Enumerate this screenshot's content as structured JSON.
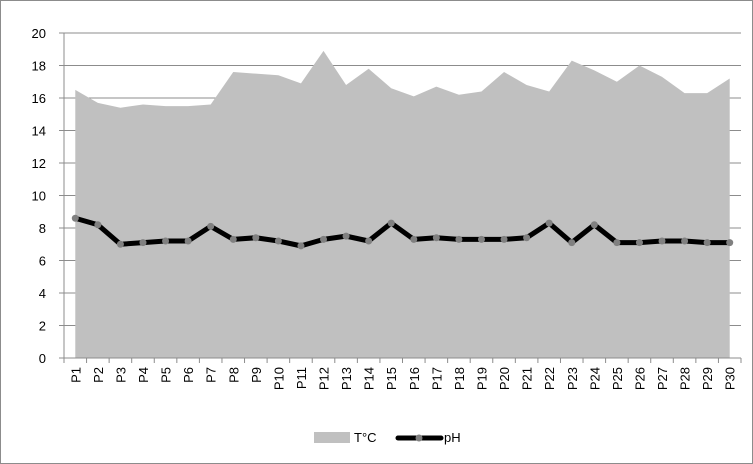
{
  "chart_data": {
    "type": "area",
    "categories": [
      "P1",
      "P2",
      "P3",
      "P4",
      "P5",
      "P6",
      "P7",
      "P8",
      "P9",
      "P10",
      "P11",
      "P12",
      "P13",
      "P14",
      "P15",
      "P16",
      "P17",
      "P18",
      "P19",
      "P20",
      "P21",
      "P22",
      "P23",
      "P24",
      "P25",
      "P26",
      "P27",
      "P28",
      "P29",
      "P30"
    ],
    "series": [
      {
        "name": "T°C",
        "type": "area",
        "color": "#c0c0c0",
        "values": [
          16.5,
          15.7,
          15.4,
          15.6,
          15.5,
          15.5,
          15.6,
          17.6,
          17.5,
          17.4,
          16.9,
          18.9,
          16.8,
          17.8,
          16.6,
          16.1,
          16.7,
          16.2,
          16.4,
          17.6,
          16.8,
          16.4,
          18.3,
          17.7,
          17.0,
          18.0,
          17.3,
          16.3,
          16.3,
          17.2
        ]
      },
      {
        "name": "pH",
        "type": "line",
        "color": "#000000",
        "marker_color": "#808080",
        "values": [
          8.6,
          8.2,
          7.0,
          7.1,
          7.2,
          7.2,
          8.1,
          7.3,
          7.4,
          7.2,
          6.9,
          7.3,
          7.5,
          7.2,
          8.3,
          7.3,
          7.4,
          7.3,
          7.3,
          7.3,
          7.4,
          8.3,
          7.1,
          8.2,
          7.1,
          7.1,
          7.2,
          7.2,
          7.1,
          7.1
        ]
      }
    ],
    "ylim": [
      0,
      20
    ],
    "yticks": [
      "0",
      "2",
      "4",
      "6",
      "8",
      "10",
      "12",
      "14",
      "16",
      "18",
      "20"
    ],
    "grid": true,
    "legend": "bottom",
    "title": "",
    "xlabel": "",
    "ylabel": ""
  }
}
